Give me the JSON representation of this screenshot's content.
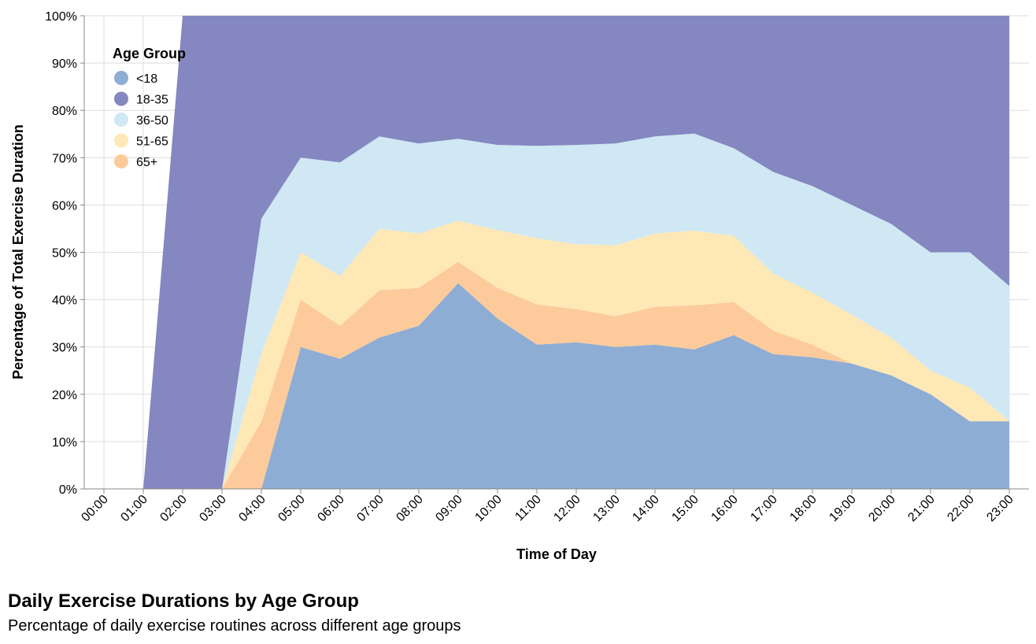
{
  "chart_data": {
    "type": "area",
    "stacked": "normalize",
    "title": "Daily Exercise Durations by Age Group",
    "subtitle": "Percentage of daily exercise routines across different age groups",
    "xlabel": "Time of Day",
    "ylabel": "Percentage of Total Exercise Duration",
    "x": [
      "00:00",
      "01:00",
      "02:00",
      "03:00",
      "04:00",
      "05:00",
      "06:00",
      "07:00",
      "08:00",
      "09:00",
      "10:00",
      "11:00",
      "12:00",
      "13:00",
      "14:00",
      "15:00",
      "16:00",
      "17:00",
      "18:00",
      "19:00",
      "20:00",
      "21:00",
      "22:00",
      "23:00"
    ],
    "y_ticks": [
      "0%",
      "10%",
      "20%",
      "30%",
      "40%",
      "50%",
      "60%",
      "70%",
      "80%",
      "90%",
      "100%"
    ],
    "ylim": [
      0,
      1
    ],
    "grid": true,
    "legend_title": "Age Group",
    "legend_position": "top-left",
    "series": [
      {
        "name": "<18",
        "color": "#8eadd4",
        "values": [
          0,
          0,
          0,
          0,
          0,
          0.3,
          0.275,
          0.32,
          0.345,
          0.435,
          0.36,
          0.305,
          0.31,
          0.3,
          0.305,
          0.295,
          0.325,
          0.285,
          0.278,
          0.265,
          0.24,
          0.2,
          0.143,
          0.143
        ]
      },
      {
        "name": "65+",
        "color": "#fdcb9b",
        "values": [
          0,
          0,
          0,
          0,
          0.143,
          0.1,
          0.07,
          0.1,
          0.08,
          0.045,
          0.065,
          0.085,
          0.07,
          0.065,
          0.08,
          0.093,
          0.07,
          0.05,
          0.027,
          0,
          0,
          0,
          0,
          0
        ]
      },
      {
        "name": "51-65",
        "color": "#fee8b6",
        "values": [
          0,
          0,
          0,
          0,
          0.142,
          0.1,
          0.105,
          0.13,
          0.115,
          0.087,
          0.122,
          0.14,
          0.137,
          0.15,
          0.155,
          0.158,
          0.14,
          0.12,
          0.11,
          0.103,
          0.08,
          0.05,
          0.071,
          0
        ]
      },
      {
        "name": "36-50",
        "color": "#cfe8f3",
        "values": [
          0,
          0,
          0,
          0,
          0.286,
          0.2,
          0.24,
          0.195,
          0.19,
          0.173,
          0.18,
          0.195,
          0.21,
          0.215,
          0.205,
          0.205,
          0.185,
          0.215,
          0.225,
          0.232,
          0.24,
          0.25,
          0.286,
          0.286
        ]
      },
      {
        "name": "18-35",
        "color": "#8487c0",
        "values": [
          0,
          0,
          1,
          1,
          0.429,
          0.3,
          0.31,
          0.255,
          0.27,
          0.26,
          0.273,
          0.275,
          0.273,
          0.27,
          0.255,
          0.249,
          0.28,
          0.33,
          0.36,
          0.4,
          0.44,
          0.5,
          0.5,
          0.571
        ]
      }
    ],
    "legend_order": [
      "<18",
      "18-35",
      "36-50",
      "51-65",
      "65+"
    ]
  }
}
